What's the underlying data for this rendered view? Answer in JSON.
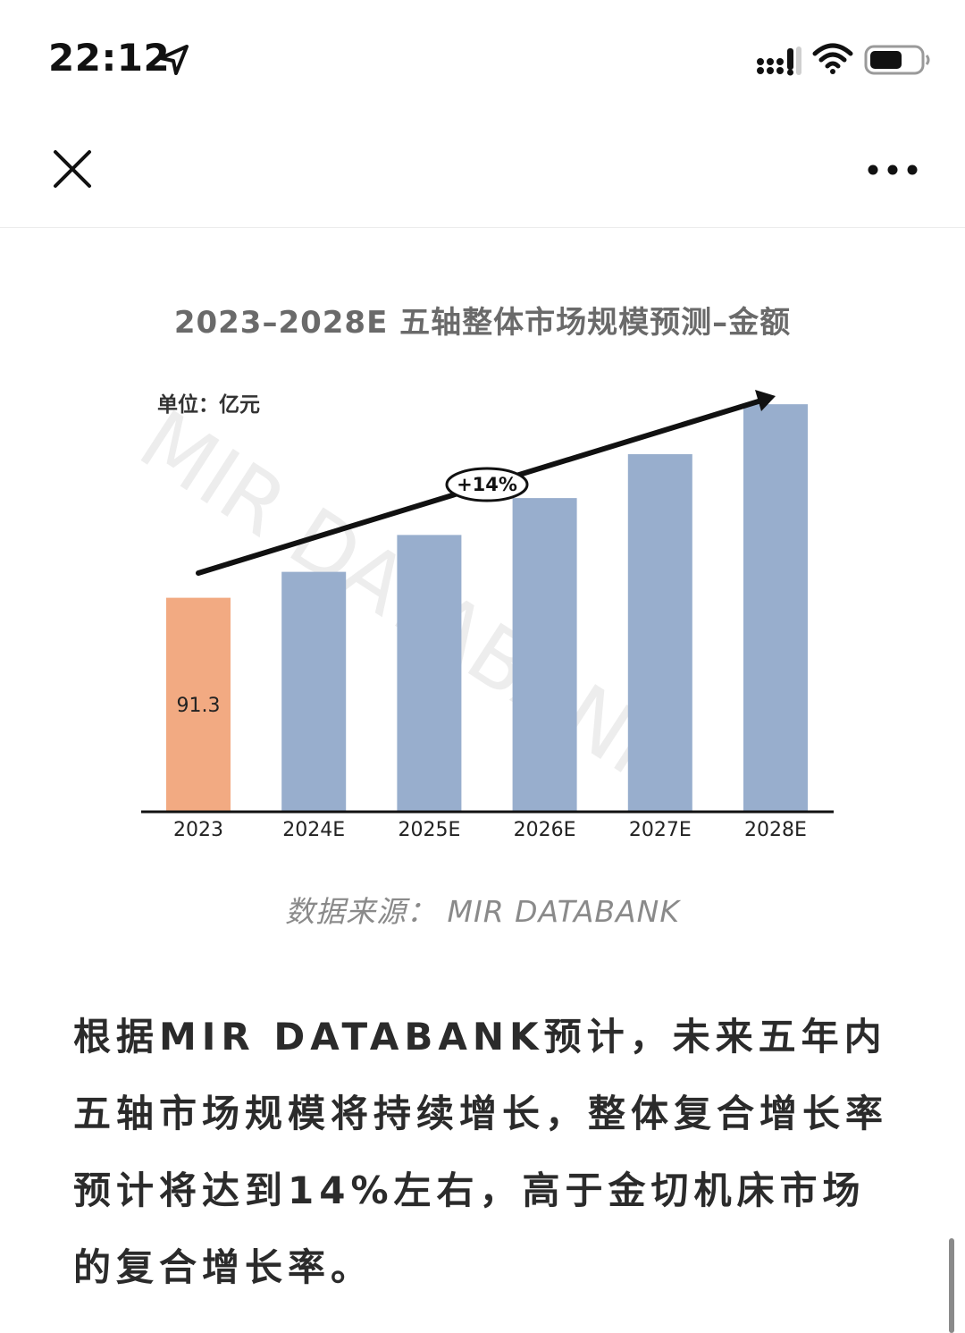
{
  "status_bar": {
    "time": "22:12",
    "battery_level": 0.65
  },
  "nav": {
    "close_icon": "close-icon",
    "more_icon": "more-icon"
  },
  "chart_data": {
    "type": "bar",
    "title": "2023–2028E 五轴整体市场规模预测–金额",
    "unit_label": "单位：亿元",
    "categories": [
      "2023",
      "2024E",
      "2025E",
      "2026E",
      "2027E",
      "2028E"
    ],
    "values": [
      91.3,
      102.4,
      118.2,
      134.0,
      152.8,
      174.2
    ],
    "data_labels": [
      "91.3",
      "",
      "",
      "",
      "",
      ""
    ],
    "growth_label": "+14%",
    "watermark": "MIR DATABANK",
    "ylim": [
      0,
      180
    ],
    "colors": {
      "actual": "#f2aa82",
      "forecast": "#98aecd",
      "axis": "#111111",
      "arrow": "#111111"
    }
  },
  "source": "数据来源：  MIR DATABANK",
  "article": {
    "paragraph": "根据MIR DATABANK预计，未来五年内五轴市场规模将持续增长，整体复合增长率预计将达到14%左右，高于金切机床市场的复合增长率。"
  }
}
